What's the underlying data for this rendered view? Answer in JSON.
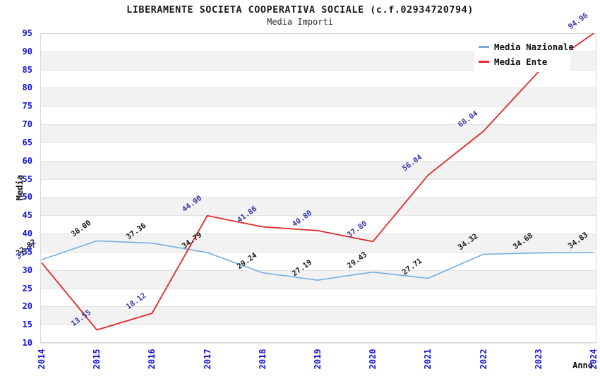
{
  "header": {
    "title": "LIBERAMENTE SOCIETA COOPERATIVA SOCIALE (c.f.02934720794)",
    "subtitle": "Media Importi"
  },
  "legend": {
    "items": [
      {
        "label": "Media Nazionale",
        "color": "#74aee0"
      },
      {
        "label": "Media Ente",
        "color": "#e32828"
      }
    ]
  },
  "colors": {
    "axis_tick": "#1414dd",
    "band_fill": "#f2f2f2",
    "gridline": "#e3e3e3",
    "frame": "#d8d8d8",
    "nazionale_line": "#74aee0",
    "ente_line": "#e32828",
    "nazionale_label": "#1a1a1a",
    "ente_label": "#3439a8"
  },
  "chart_data": {
    "type": "line",
    "title": "LIBERAMENTE SOCIETA COOPERATIVA SOCIALE (c.f.02934720794)",
    "subtitle": "Media Importi",
    "xlabel": "Anno",
    "ylabel": "Media",
    "x": [
      2014,
      2015,
      2016,
      2017,
      2018,
      2019,
      2020,
      2021,
      2022,
      2023,
      2024
    ],
    "ylim": [
      10,
      95
    ],
    "ytick_step": 5,
    "grid": true,
    "banded_background": true,
    "legend_position": "top-right-inside",
    "series": [
      {
        "name": "Media Nazionale",
        "color": "#74aee0",
        "label_color": "#1a1a1a",
        "values": [
          32.82,
          38.0,
          37.36,
          34.79,
          29.24,
          27.19,
          29.43,
          27.71,
          34.32,
          34.68,
          34.83
        ],
        "labels": [
          "32.82",
          "38.00",
          "37.36",
          "34.79",
          "29.24",
          "27.19",
          "29.43",
          "27.71",
          "34.32",
          "34.68",
          "34.83"
        ]
      },
      {
        "name": "Media Ente",
        "color": "#e32828",
        "label_color": "#3439a8",
        "values": [
          31.97,
          13.55,
          18.12,
          44.9,
          41.86,
          40.8,
          37.8,
          56.04,
          68.04,
          84.4,
          94.96
        ],
        "labels": [
          "31.97",
          "13.55",
          "18.12",
          "44.90",
          "41.86",
          "40.80",
          "37.80",
          "56.04",
          "68.04",
          null,
          "94.96"
        ]
      }
    ]
  }
}
